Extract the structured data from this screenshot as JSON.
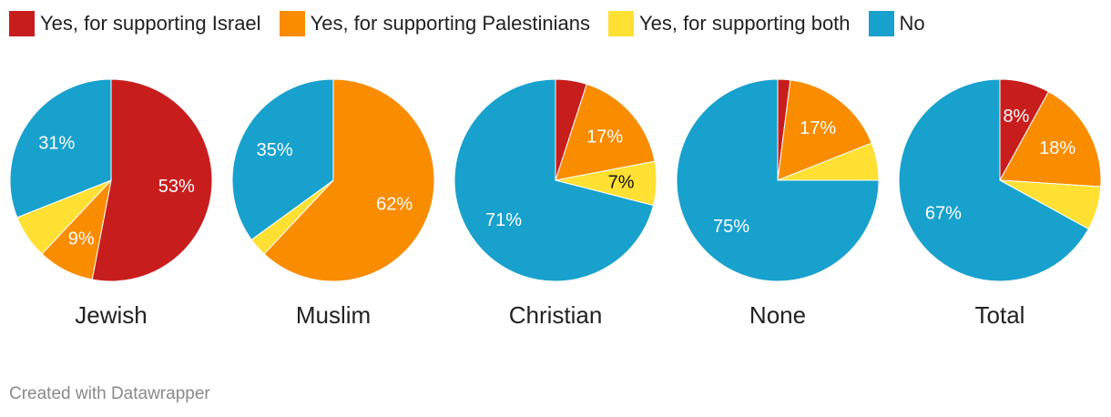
{
  "legend": [
    {
      "label": "Yes, for supporting Israel",
      "color": "#c71e1d"
    },
    {
      "label": "Yes, for supporting Palestinians",
      "color": "#fa8c00"
    },
    {
      "label": "Yes, for supporting both",
      "color": "#ffe033"
    },
    {
      "label": "No",
      "color": "#18a1cd"
    }
  ],
  "chart_data": {
    "type": "pie",
    "categories": [
      "Yes, for supporting Israel",
      "Yes, for supporting Palestinians",
      "Yes, for supporting both",
      "No"
    ],
    "colors": [
      "#c71e1d",
      "#fa8c00",
      "#ffe033",
      "#18a1cd"
    ],
    "groups": [
      {
        "name": "Jewish",
        "values": [
          53,
          9,
          7,
          31
        ],
        "labels": [
          "53%",
          "9%",
          "",
          "31%"
        ]
      },
      {
        "name": "Muslim",
        "values": [
          0,
          62,
          3,
          35
        ],
        "labels": [
          "",
          "62%",
          "",
          "35%"
        ]
      },
      {
        "name": "Christian",
        "values": [
          5,
          17,
          7,
          71
        ],
        "labels": [
          "",
          "17%",
          "7%",
          "71%"
        ]
      },
      {
        "name": "None",
        "values": [
          2,
          17,
          6,
          75
        ],
        "labels": [
          "",
          "17%",
          "",
          "75%"
        ]
      },
      {
        "name": "Total",
        "values": [
          8,
          18,
          7,
          67
        ],
        "labels": [
          "8%",
          "18%",
          "",
          "67%"
        ]
      }
    ]
  },
  "footer": "Created with Datawrapper"
}
